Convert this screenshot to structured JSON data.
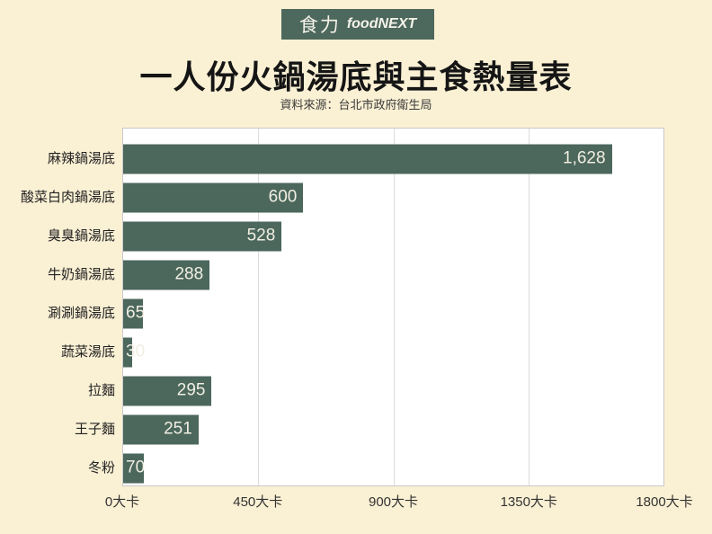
{
  "logo": {
    "zh": "食力",
    "en": "foodNEXT"
  },
  "header": {
    "title": "一人份火鍋湯底與主食熱量表",
    "source": "資料來源：台北市政府衛生局"
  },
  "chart_data": {
    "type": "bar",
    "orientation": "horizontal",
    "title": "一人份火鍋湯底與主食熱量表",
    "source_note": "資料來源：台北市政府衛生局",
    "categories": [
      "麻辣鍋湯底",
      "酸菜白肉鍋湯底",
      "臭臭鍋湯底",
      "牛奶鍋湯底",
      "涮涮鍋湯底",
      "蔬菜湯底",
      "拉麵",
      "王子麵",
      "冬粉"
    ],
    "values": [
      1628,
      600,
      528,
      288,
      65,
      30,
      295,
      251,
      70
    ],
    "value_labels": [
      "1,628",
      "600",
      "528",
      "288",
      "65",
      "30",
      "295",
      "251",
      "70"
    ],
    "unit": "大卡",
    "x_ticks": [
      "0大卡",
      "450大卡",
      "900大卡",
      "1350大卡",
      "1800大卡"
    ],
    "xlim": [
      0,
      1800
    ],
    "grid": true,
    "legend": "none",
    "colors": {
      "bar": "#4c675c",
      "page_bg": "#faf0d4",
      "plot_bg": "#ffffff",
      "plot_border": "#c9c9c9",
      "gridline": "#dcdcdc",
      "value_text": "#f1eee2",
      "logo_bg": "#4d685c"
    }
  }
}
